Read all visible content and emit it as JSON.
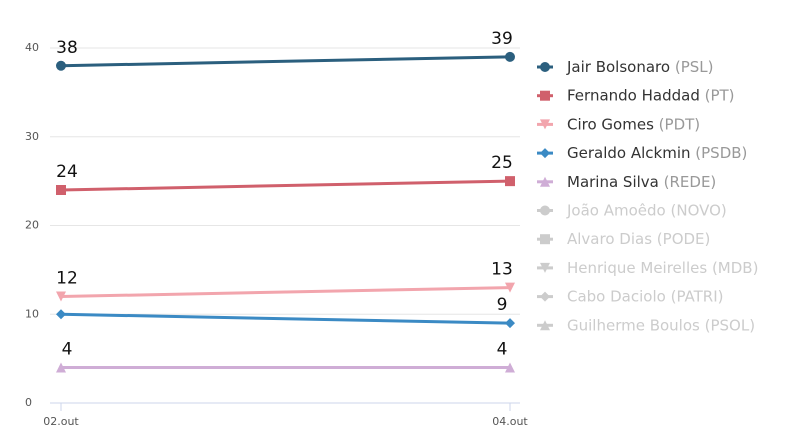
{
  "chart_data": {
    "type": "line",
    "categories": [
      "02.out",
      "04.out"
    ],
    "ylim": [
      0,
      40
    ],
    "yticks": [
      0,
      10,
      20,
      30,
      40
    ],
    "grid": true,
    "series": [
      {
        "name": "Jair Bolsonaro",
        "party": "(PSL)",
        "color": "#2b5f7e",
        "marker": "circle",
        "values": [
          38,
          39
        ]
      },
      {
        "name": "Fernando Haddad",
        "party": "(PT)",
        "color": "#d0606c",
        "marker": "square",
        "values": [
          24,
          25
        ]
      },
      {
        "name": "Ciro Gomes",
        "party": "(PDT)",
        "color": "#f2a5ad",
        "marker": "triangle-down",
        "values": [
          12,
          13
        ]
      },
      {
        "name": "Geraldo Alckmin",
        "party": "(PSDB)",
        "color": "#3b8ac4",
        "marker": "diamond",
        "values": [
          10,
          9
        ],
        "value_labels": [
          null,
          "9"
        ]
      },
      {
        "name": "Marina Silva",
        "party": "(REDE)",
        "color": "#cfadd6",
        "marker": "triangle-up",
        "values": [
          4,
          4
        ]
      },
      {
        "name": "João Amoêdo",
        "party": "(NOVO)",
        "color": "#cccccc",
        "marker": "circle",
        "hidden": true
      },
      {
        "name": "Alvaro Dias",
        "party": "(PODE)",
        "color": "#cccccc",
        "marker": "square",
        "hidden": true
      },
      {
        "name": "Henrique Meirelles",
        "party": "(MDB)",
        "color": "#cccccc",
        "marker": "triangle-down",
        "hidden": true
      },
      {
        "name": "Cabo Daciolo",
        "party": "(PATRI)",
        "color": "#cccccc",
        "marker": "diamond",
        "hidden": true
      },
      {
        "name": "Guilherme Boulos",
        "party": "(PSOL)",
        "color": "#cccccc",
        "marker": "triangle-up",
        "hidden": true
      }
    ]
  }
}
